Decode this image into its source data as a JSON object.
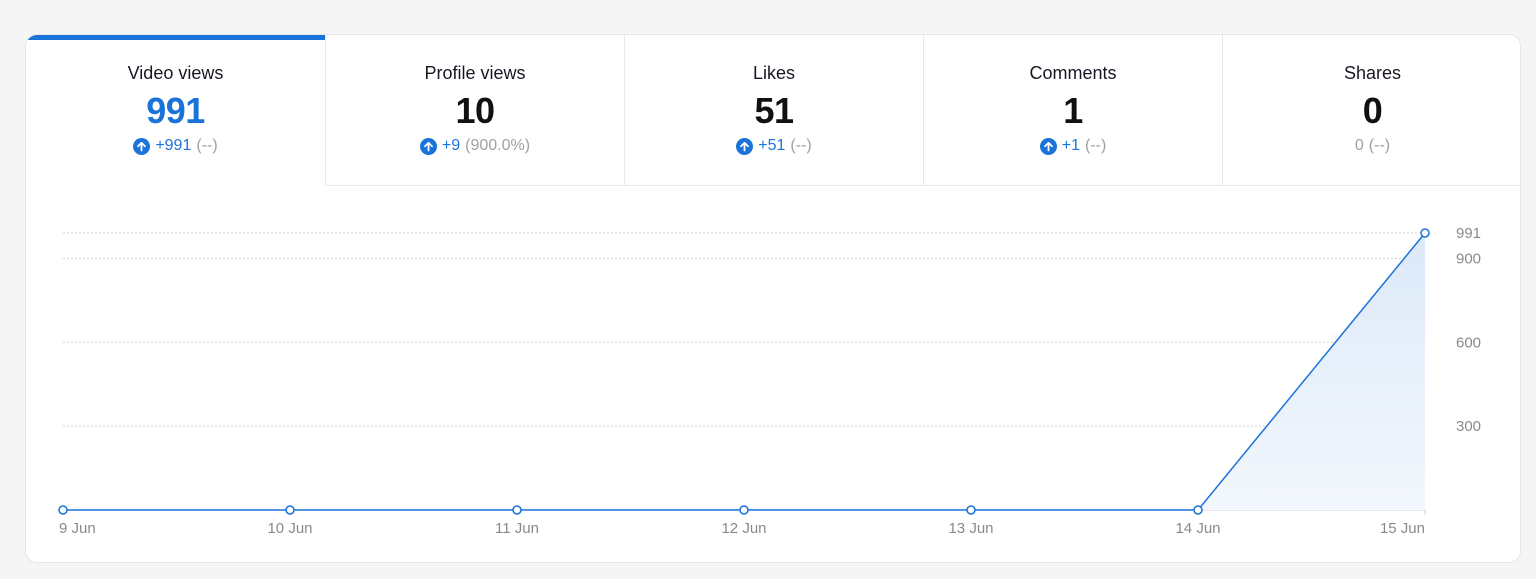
{
  "tabs": [
    {
      "label": "Video views",
      "value": "991",
      "delta": "+991",
      "pct": "(--)",
      "trend": "up",
      "active": true
    },
    {
      "label": "Profile views",
      "value": "10",
      "delta": "+9",
      "pct": "(900.0%)",
      "trend": "up",
      "active": false
    },
    {
      "label": "Likes",
      "value": "51",
      "delta": "+51",
      "pct": "(--)",
      "trend": "up",
      "active": false
    },
    {
      "label": "Comments",
      "value": "1",
      "delta": "+1",
      "pct": "(--)",
      "trend": "up",
      "active": false
    },
    {
      "label": "Shares",
      "value": "0",
      "delta": "0",
      "pct": "(--)",
      "trend": "none",
      "active": false
    }
  ],
  "colors": {
    "accent": "#1a73d9",
    "fill": "#e6f0fb",
    "muted": "#a0a0a0",
    "grid": "#d0d0d0"
  },
  "chart_data": {
    "type": "area",
    "title": "Video views",
    "categories": [
      "9 Jun",
      "10 Jun",
      "11 Jun",
      "12 Jun",
      "13 Jun",
      "14 Jun",
      "15 Jun"
    ],
    "series": [
      {
        "name": "Video views",
        "values": [
          0,
          0,
          0,
          0,
          0,
          0,
          991
        ]
      }
    ],
    "yticks": [
      300,
      600,
      900,
      991
    ],
    "ylim": [
      0,
      991
    ],
    "grid": true,
    "y_axis_position": "right",
    "xlabel": "",
    "ylabel": ""
  }
}
